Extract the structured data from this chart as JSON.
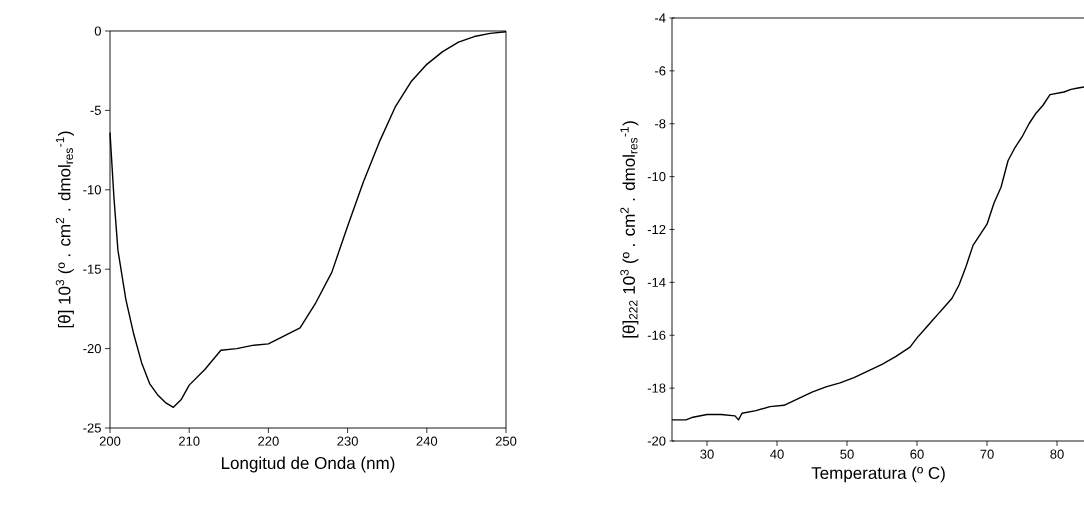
{
  "chart_data": [
    {
      "type": "line",
      "xlabel": "Longitud de Onda (nm)",
      "ylabel": "[θ] 10$^{3}$ (º . cm$^{2}$ . dmol$_{res}$$^{-1}$)",
      "x": [
        200,
        200.5,
        201,
        202,
        203,
        204,
        205,
        206,
        207,
        208,
        209,
        210,
        212,
        214,
        216,
        218,
        220,
        222,
        224,
        226,
        228,
        230,
        232,
        234,
        236,
        238,
        240,
        242,
        244,
        246,
        248,
        250
      ],
      "series": [
        {
          "color": "#000000",
          "values": [
            -6.4,
            -10.5,
            -13.8,
            -16.9,
            -19.1,
            -20.9,
            -22.2,
            -22.9,
            -23.4,
            -23.7,
            -23.2,
            -22.3,
            -21.3,
            -20.1,
            -20.0,
            -19.8,
            -19.7,
            -19.2,
            -18.7,
            -17.1,
            -15.2,
            -12.3,
            -9.5,
            -7.0,
            -4.8,
            -3.2,
            -2.1,
            -1.3,
            -0.7,
            -0.35,
            -0.15,
            -0.05
          ]
        }
      ],
      "xlim": [
        200,
        250
      ],
      "xticks": [
        200,
        210,
        220,
        230,
        240,
        250
      ],
      "ylim": [
        -25,
        0
      ],
      "yticks": [
        -25,
        -20,
        -15,
        -10,
        -5,
        0
      ],
      "grid": false
    },
    {
      "type": "line",
      "xlabel": "Temperatura (º C)",
      "ylabel": "[θ]$_{222}$ 10$^{3}$ (º . cm$^{2}$ . dmol$_{res}$$^{-1}$)",
      "x": [
        25,
        27,
        28,
        30,
        32,
        34,
        34.5,
        35,
        37,
        39,
        41,
        43,
        45,
        47,
        49,
        51,
        53,
        55,
        57,
        59,
        60,
        61,
        62,
        63,
        64,
        65,
        66,
        67,
        68,
        69,
        70,
        71,
        72,
        73,
        74,
        75,
        76,
        77,
        78,
        79,
        80,
        81,
        82,
        83,
        84
      ],
      "series": [
        {
          "color": "#000000",
          "values": [
            -19.2,
            -19.2,
            -19.1,
            -19.0,
            -19.0,
            -19.05,
            -19.2,
            -18.95,
            -18.85,
            -18.7,
            -18.65,
            -18.4,
            -18.15,
            -17.95,
            -17.8,
            -17.6,
            -17.35,
            -17.1,
            -16.8,
            -16.45,
            -16.1,
            -15.8,
            -15.5,
            -15.2,
            -14.9,
            -14.6,
            -14.1,
            -13.4,
            -12.6,
            -12.2,
            -11.8,
            -11.0,
            -10.4,
            -9.4,
            -8.9,
            -8.5,
            -8.0,
            -7.6,
            -7.3,
            -6.9,
            -6.85,
            -6.8,
            -6.7,
            -6.65,
            -6.6
          ]
        }
      ],
      "xlim": [
        25,
        84
      ],
      "xticks": [
        30,
        40,
        50,
        60,
        70,
        80
      ],
      "ylim": [
        -20,
        -4
      ],
      "yticks": [
        -20,
        -18,
        -16,
        -14,
        -12,
        -10,
        -8,
        -6,
        -4
      ],
      "grid": false
    }
  ]
}
